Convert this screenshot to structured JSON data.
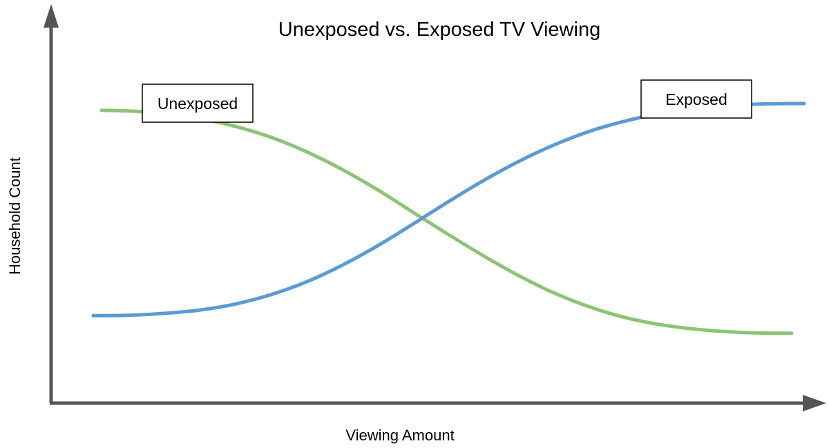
{
  "chart_data": {
    "type": "line",
    "title": "Unexposed vs. Exposed TV Viewing",
    "xlabel": "Viewing Amount",
    "ylabel": "Household Count",
    "xlim": [
      0,
      1
    ],
    "ylim": [
      0,
      1
    ],
    "grid": false,
    "tick_labels": false,
    "series": [
      {
        "name": "Unexposed",
        "color": "#8cc474",
        "x": [
          0.0,
          0.05,
          0.1,
          0.15,
          0.2,
          0.25,
          0.3,
          0.35,
          0.4,
          0.45,
          0.5,
          0.55,
          0.6,
          0.65,
          0.7,
          0.75,
          0.8,
          0.85,
          0.9,
          0.95,
          1.0
        ],
        "values": [
          0.78,
          0.777,
          0.769,
          0.755,
          0.734,
          0.705,
          0.667,
          0.621,
          0.568,
          0.51,
          0.452,
          0.396,
          0.344,
          0.298,
          0.261,
          0.232,
          0.212,
          0.199,
          0.191,
          0.187,
          0.186
        ]
      },
      {
        "name": "Exposed",
        "color": "#5b9bd5",
        "x": [
          0.0,
          0.05,
          0.1,
          0.15,
          0.2,
          0.25,
          0.3,
          0.35,
          0.4,
          0.45,
          0.5,
          0.55,
          0.6,
          0.65,
          0.7,
          0.75,
          0.8,
          0.85,
          0.9,
          0.95,
          1.0
        ],
        "values": [
          0.233,
          0.234,
          0.239,
          0.248,
          0.264,
          0.289,
          0.323,
          0.367,
          0.419,
          0.477,
          0.537,
          0.594,
          0.645,
          0.689,
          0.725,
          0.752,
          0.772,
          0.785,
          0.793,
          0.797,
          0.798
        ]
      }
    ],
    "legend": {
      "placement": "inline-labels",
      "items": [
        "Unexposed",
        "Exposed"
      ]
    },
    "axis_color": "#555555"
  }
}
